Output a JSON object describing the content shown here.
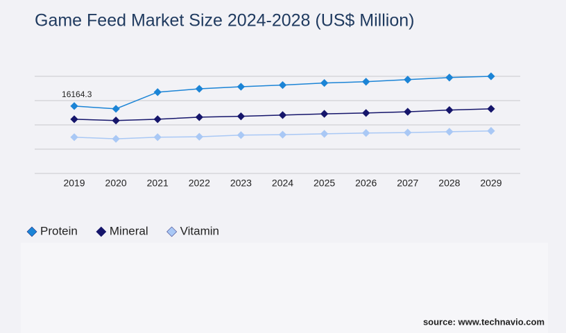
{
  "chart_data": {
    "type": "line",
    "title": "Game Feed Market Size 2024-2028 (US$ Million)",
    "categories": [
      "2019",
      "2020",
      "2021",
      "2022",
      "2023",
      "2024",
      "2025",
      "2026",
      "2027",
      "2028",
      "2029"
    ],
    "series": [
      {
        "name": "Protein",
        "color": "#1b84d6",
        "values": [
          16164.3,
          15500,
          19500,
          20300,
          20800,
          21200,
          21700,
          22000,
          22500,
          23000,
          23300
        ]
      },
      {
        "name": "Mineral",
        "color": "#15156b",
        "values": [
          13000,
          12700,
          13000,
          13500,
          13700,
          14000,
          14300,
          14500,
          14800,
          15200,
          15500
        ]
      },
      {
        "name": "Vitamin",
        "color": "#a9c8f5",
        "values": [
          8700,
          8300,
          8700,
          8800,
          9200,
          9300,
          9500,
          9700,
          9800,
          10000,
          10200
        ]
      }
    ],
    "ylim": [
      0,
      23300
    ],
    "yticks": [
      0,
      5825,
      11650,
      17475,
      23300
    ],
    "grid": true,
    "legend": "bottom-left",
    "source": "source: www.technavio.com"
  }
}
